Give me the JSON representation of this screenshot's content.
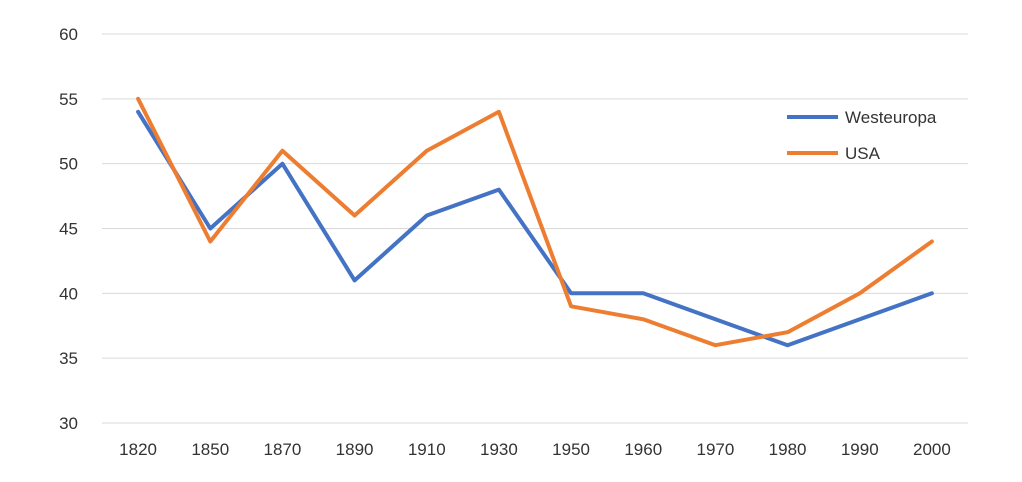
{
  "chart_data": {
    "type": "line",
    "categories": [
      "1820",
      "1850",
      "1870",
      "1890",
      "1910",
      "1930",
      "1950",
      "1960",
      "1970",
      "1980",
      "1990",
      "2000"
    ],
    "series": [
      {
        "name": "Westeuropa",
        "color": "#4472C4",
        "values": [
          54,
          45,
          50,
          41,
          46,
          48,
          40,
          40,
          38,
          36,
          38,
          40
        ]
      },
      {
        "name": "USA",
        "color": "#ED7D31",
        "values": [
          55,
          44,
          51,
          46,
          51,
          54,
          39,
          38,
          36,
          37,
          40,
          44
        ]
      }
    ],
    "ylim": [
      30,
      60
    ],
    "yticks": [
      "30",
      "35",
      "40",
      "45",
      "50",
      "55",
      "60"
    ],
    "grid": true,
    "legend": "right",
    "title": "",
    "xlabel": "",
    "ylabel": ""
  }
}
